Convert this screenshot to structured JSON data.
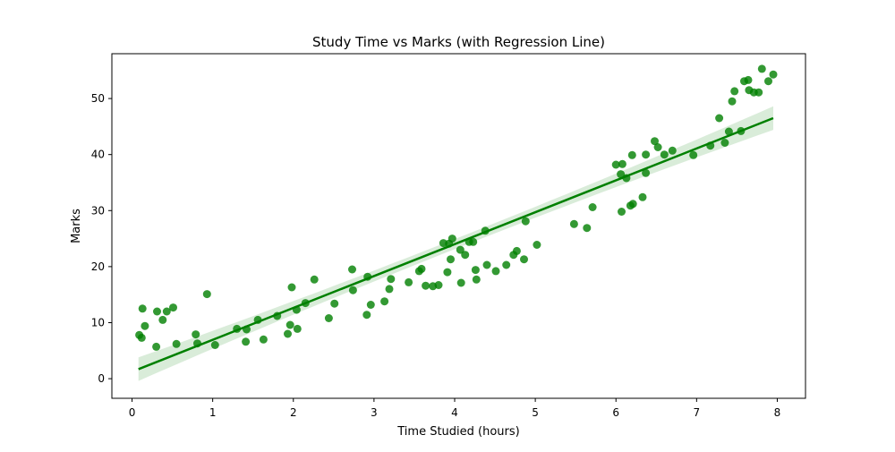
{
  "chart_data": {
    "type": "scatter",
    "title": "Study Time vs Marks (with Regression Line)",
    "xlabel": "Time Studied (hours)",
    "ylabel": "Marks",
    "xlim": [
      -0.25,
      8.35
    ],
    "ylim": [
      -3.5,
      58
    ],
    "xticks": [
      0,
      1,
      2,
      3,
      4,
      5,
      6,
      7,
      8
    ],
    "yticks": [
      0,
      10,
      20,
      30,
      40,
      50
    ],
    "grid": false,
    "legend": "none",
    "colors": {
      "points": "#008000",
      "line": "#008000",
      "band": "#008000"
    },
    "regression": {
      "x": [
        0.08,
        7.95
      ],
      "y": [
        1.7,
        46.5
      ],
      "band_halfwidth_ends": 2.1,
      "band_halfwidth_mid": 0.9
    },
    "points": [
      [
        0.09,
        7.8
      ],
      [
        0.12,
        7.3
      ],
      [
        0.13,
        12.5
      ],
      [
        0.16,
        9.4
      ],
      [
        0.3,
        5.7
      ],
      [
        0.31,
        12.0
      ],
      [
        0.38,
        10.5
      ],
      [
        0.43,
        12.0
      ],
      [
        0.51,
        12.7
      ],
      [
        0.55,
        6.2
      ],
      [
        0.79,
        7.9
      ],
      [
        0.81,
        6.3
      ],
      [
        0.93,
        15.1
      ],
      [
        1.03,
        6.0
      ],
      [
        1.3,
        8.9
      ],
      [
        1.41,
        6.6
      ],
      [
        1.42,
        8.8
      ],
      [
        1.56,
        10.5
      ],
      [
        1.63,
        7.0
      ],
      [
        1.8,
        11.2
      ],
      [
        1.93,
        8.0
      ],
      [
        1.96,
        9.6
      ],
      [
        1.98,
        16.3
      ],
      [
        2.04,
        12.3
      ],
      [
        2.05,
        8.9
      ],
      [
        2.15,
        13.5
      ],
      [
        2.26,
        17.7
      ],
      [
        2.44,
        10.8
      ],
      [
        2.51,
        13.4
      ],
      [
        2.73,
        19.5
      ],
      [
        2.74,
        15.8
      ],
      [
        2.91,
        11.4
      ],
      [
        2.92,
        18.2
      ],
      [
        2.96,
        13.2
      ],
      [
        3.13,
        13.8
      ],
      [
        3.19,
        16.0
      ],
      [
        3.21,
        17.8
      ],
      [
        3.43,
        17.2
      ],
      [
        3.56,
        19.2
      ],
      [
        3.59,
        19.6
      ],
      [
        3.64,
        16.6
      ],
      [
        3.73,
        16.5
      ],
      [
        3.8,
        16.7
      ],
      [
        3.86,
        24.2
      ],
      [
        3.91,
        19.0
      ],
      [
        3.93,
        24.1
      ],
      [
        3.95,
        21.3
      ],
      [
        3.97,
        25.0
      ],
      [
        4.07,
        23.0
      ],
      [
        4.08,
        17.1
      ],
      [
        4.13,
        22.1
      ],
      [
        4.18,
        24.4
      ],
      [
        4.23,
        24.4
      ],
      [
        4.26,
        19.4
      ],
      [
        4.27,
        17.7
      ],
      [
        4.38,
        26.4
      ],
      [
        4.4,
        20.3
      ],
      [
        4.51,
        19.2
      ],
      [
        4.64,
        20.3
      ],
      [
        4.73,
        22.1
      ],
      [
        4.77,
        22.8
      ],
      [
        4.86,
        21.3
      ],
      [
        4.88,
        28.1
      ],
      [
        5.02,
        23.9
      ],
      [
        5.48,
        27.6
      ],
      [
        5.64,
        26.9
      ],
      [
        5.71,
        30.6
      ],
      [
        6.0,
        38.2
      ],
      [
        6.06,
        36.5
      ],
      [
        6.07,
        29.8
      ],
      [
        6.08,
        38.3
      ],
      [
        6.13,
        35.8
      ],
      [
        6.18,
        30.9
      ],
      [
        6.2,
        39.9
      ],
      [
        6.21,
        31.2
      ],
      [
        6.33,
        32.4
      ],
      [
        6.37,
        40.0
      ],
      [
        6.37,
        36.7
      ],
      [
        6.48,
        42.4
      ],
      [
        6.52,
        41.3
      ],
      [
        6.6,
        40.0
      ],
      [
        6.7,
        40.7
      ],
      [
        6.96,
        39.9
      ],
      [
        7.17,
        41.6
      ],
      [
        7.28,
        46.5
      ],
      [
        7.35,
        42.1
      ],
      [
        7.4,
        44.1
      ],
      [
        7.44,
        49.5
      ],
      [
        7.47,
        51.3
      ],
      [
        7.55,
        44.2
      ],
      [
        7.59,
        53.1
      ],
      [
        7.64,
        53.3
      ],
      [
        7.65,
        51.5
      ],
      [
        7.71,
        51.1
      ],
      [
        7.77,
        51.1
      ],
      [
        7.81,
        55.3
      ],
      [
        7.89,
        53.1
      ],
      [
        7.95,
        54.3
      ]
    ]
  }
}
